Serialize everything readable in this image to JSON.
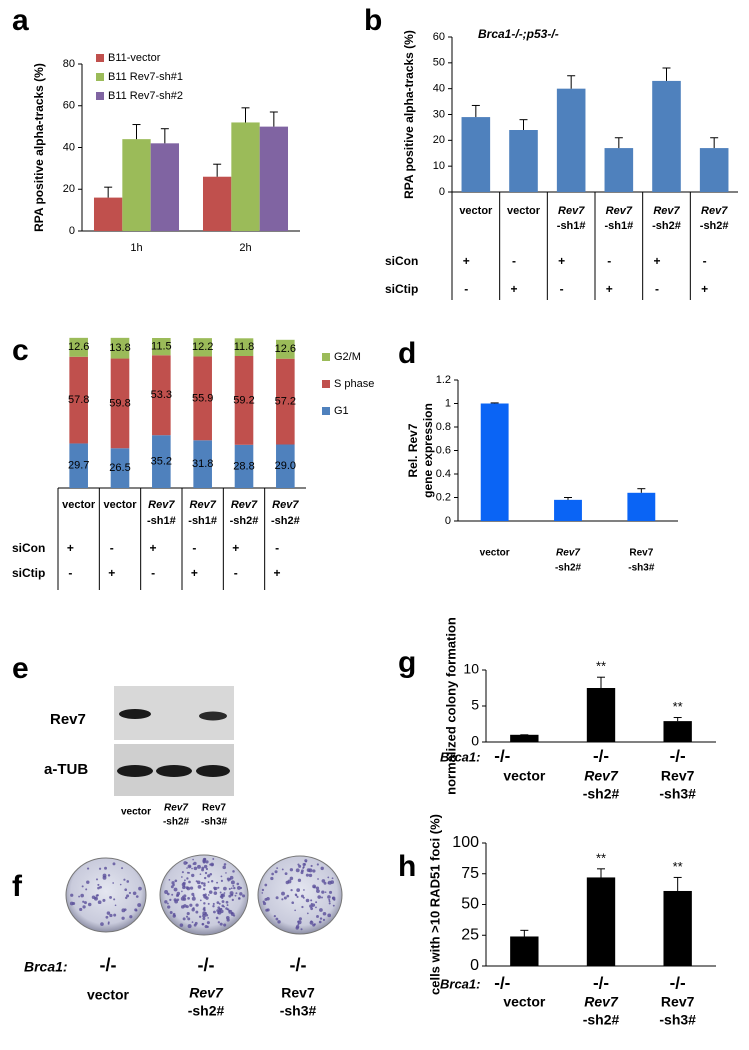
{
  "chart_data": [
    {
      "panel": "a",
      "type": "bar",
      "ylabel": "RPA positive alpha-tracks (%)",
      "categories": [
        "1h",
        "2h"
      ],
      "series": [
        {
          "name": "B11-vector",
          "color": "#c0504d",
          "values": [
            16,
            26
          ],
          "errors": [
            5,
            6
          ]
        },
        {
          "name": "B11 Rev7-sh#1",
          "color": "#9bbb59",
          "values": [
            44,
            52
          ],
          "errors": [
            7,
            7
          ]
        },
        {
          "name": "B11 Rev7-sh#2",
          "color": "#8064a2",
          "values": [
            42,
            50
          ],
          "errors": [
            7,
            7
          ]
        }
      ],
      "ylim": [
        0,
        80
      ],
      "yticks": [
        0,
        20,
        40,
        60,
        80
      ],
      "legend": "upper left"
    },
    {
      "panel": "b",
      "type": "bar",
      "title": "Brca1-/-;p53-/-",
      "ylabel": "RPA positive alpha-tracks (%)",
      "categories": [
        [
          "vector"
        ],
        [
          "vector"
        ],
        [
          "Rev7",
          "-sh1#"
        ],
        [
          "Rev7",
          "-sh1#"
        ],
        [
          "Rev7",
          "-sh2#"
        ],
        [
          "Rev7",
          "-sh2#"
        ]
      ],
      "values": [
        29,
        24,
        40,
        17,
        43,
        17
      ],
      "errors": [
        4.5,
        4,
        5,
        4,
        5,
        4
      ],
      "color": "#4f81bd",
      "ylim": [
        0,
        60
      ],
      "yticks": [
        0,
        10,
        20,
        30,
        40,
        50,
        60
      ],
      "conditions": [
        {
          "label": "siCon",
          "values": [
            "+",
            "-",
            "+",
            "-",
            "+",
            "-"
          ]
        },
        {
          "label": "siCtip",
          "values": [
            "-",
            "+",
            "-",
            "+",
            "-",
            "+"
          ]
        }
      ]
    },
    {
      "panel": "c",
      "type": "bar",
      "stacked": true,
      "categories": [
        [
          "vector"
        ],
        [
          "vector"
        ],
        [
          "Rev7",
          "-sh1#"
        ],
        [
          "Rev7",
          "-sh1#"
        ],
        [
          "Rev7",
          "-sh2#"
        ],
        [
          "Rev7",
          "-sh2#"
        ]
      ],
      "series": [
        {
          "name": "G1",
          "color": "#4f81bd",
          "values": [
            29.7,
            26.5,
            35.2,
            31.8,
            28.8,
            29.0
          ],
          "value_labels": [
            "29.7",
            "26.5",
            "35.2",
            "31.8",
            "28.8",
            "29.0"
          ]
        },
        {
          "name": "S phase",
          "color": "#c0504d",
          "values": [
            57.8,
            59.8,
            53.3,
            55.9,
            59.2,
            57.2
          ],
          "value_labels": [
            "57.8",
            "59.8",
            "53.3",
            "55.9",
            "59.2",
            "57.2"
          ]
        },
        {
          "name": "G2/M",
          "color": "#9bbb59",
          "values": [
            12.6,
            13.8,
            11.5,
            12.2,
            11.8,
            12.6
          ],
          "value_labels": [
            "12.6",
            "13.8",
            "11.5",
            "12.2",
            "11.8",
            "12.6"
          ]
        }
      ],
      "ylim": [
        0,
        100
      ],
      "legend": "right",
      "conditions": [
        {
          "label": "siCon",
          "values": [
            "+",
            "-",
            "+",
            "-",
            "+",
            "-"
          ]
        },
        {
          "label": "siCtip",
          "values": [
            "-",
            "+",
            "-",
            "+",
            "-",
            "+"
          ]
        }
      ]
    },
    {
      "panel": "d",
      "type": "bar",
      "ylabel": [
        "Rel. Rev7",
        "gene expression"
      ],
      "categories": [
        [
          "vector"
        ],
        [
          "Rev7",
          "-sh2#"
        ],
        [
          "Rev7",
          "-sh3#"
        ]
      ],
      "values": [
        1,
        0.18,
        0.24
      ],
      "errors": [
        0.005,
        0.02,
        0.035
      ],
      "color": "#0a64f5",
      "ylim": [
        0,
        1.2
      ],
      "yticks": [
        0,
        0.2,
        0.4,
        0.6,
        0.8,
        1,
        1.2
      ]
    },
    {
      "panel": "g",
      "type": "bar",
      "ylabel": "normalized colony formation",
      "row_label": "Brca1:",
      "genotype": [
        "-/-",
        "-/-",
        "-/-"
      ],
      "categories": [
        [
          "vector"
        ],
        [
          "Rev7",
          "-sh2#"
        ],
        [
          "Rev7",
          "-sh3#"
        ]
      ],
      "values": [
        1,
        7.5,
        2.9
      ],
      "errors": [
        0,
        1.5,
        0.5
      ],
      "annotations": [
        null,
        "**",
        "**"
      ],
      "color": "#000000",
      "ylim": [
        0,
        10
      ],
      "yticks": [
        0,
        5,
        10
      ]
    },
    {
      "panel": "h",
      "type": "bar",
      "ylabel": "cells with >10 RAD51 foci (%)",
      "row_label": "Brca1:",
      "genotype": [
        "-/-",
        "-/-",
        "-/-"
      ],
      "categories": [
        [
          "vector"
        ],
        [
          "Rev7",
          "-sh2#"
        ],
        [
          "Rev7",
          "-sh3#"
        ]
      ],
      "values": [
        24,
        72,
        61
      ],
      "errors": [
        5,
        7,
        11
      ],
      "annotations": [
        null,
        "**",
        "**"
      ],
      "color": "#000000",
      "ylim": [
        0,
        100
      ],
      "yticks": [
        0,
        25,
        50,
        75,
        100
      ]
    }
  ],
  "figures": {
    "e": {
      "panel": "e",
      "rows": [
        "Rev7",
        "a-TUB"
      ],
      "lanes": [
        [
          "vector"
        ],
        [
          "Rev7",
          "-sh2#"
        ],
        [
          "Rev7",
          "-sh3#"
        ]
      ]
    },
    "f": {
      "panel": "f",
      "row_label": "Brca1:",
      "genotype": [
        "-/-",
        "-/-",
        "-/-"
      ],
      "lanes": [
        [
          "vector"
        ],
        [
          "Rev7",
          "-sh2#"
        ],
        [
          "Rev7",
          "-sh3#"
        ]
      ]
    }
  }
}
